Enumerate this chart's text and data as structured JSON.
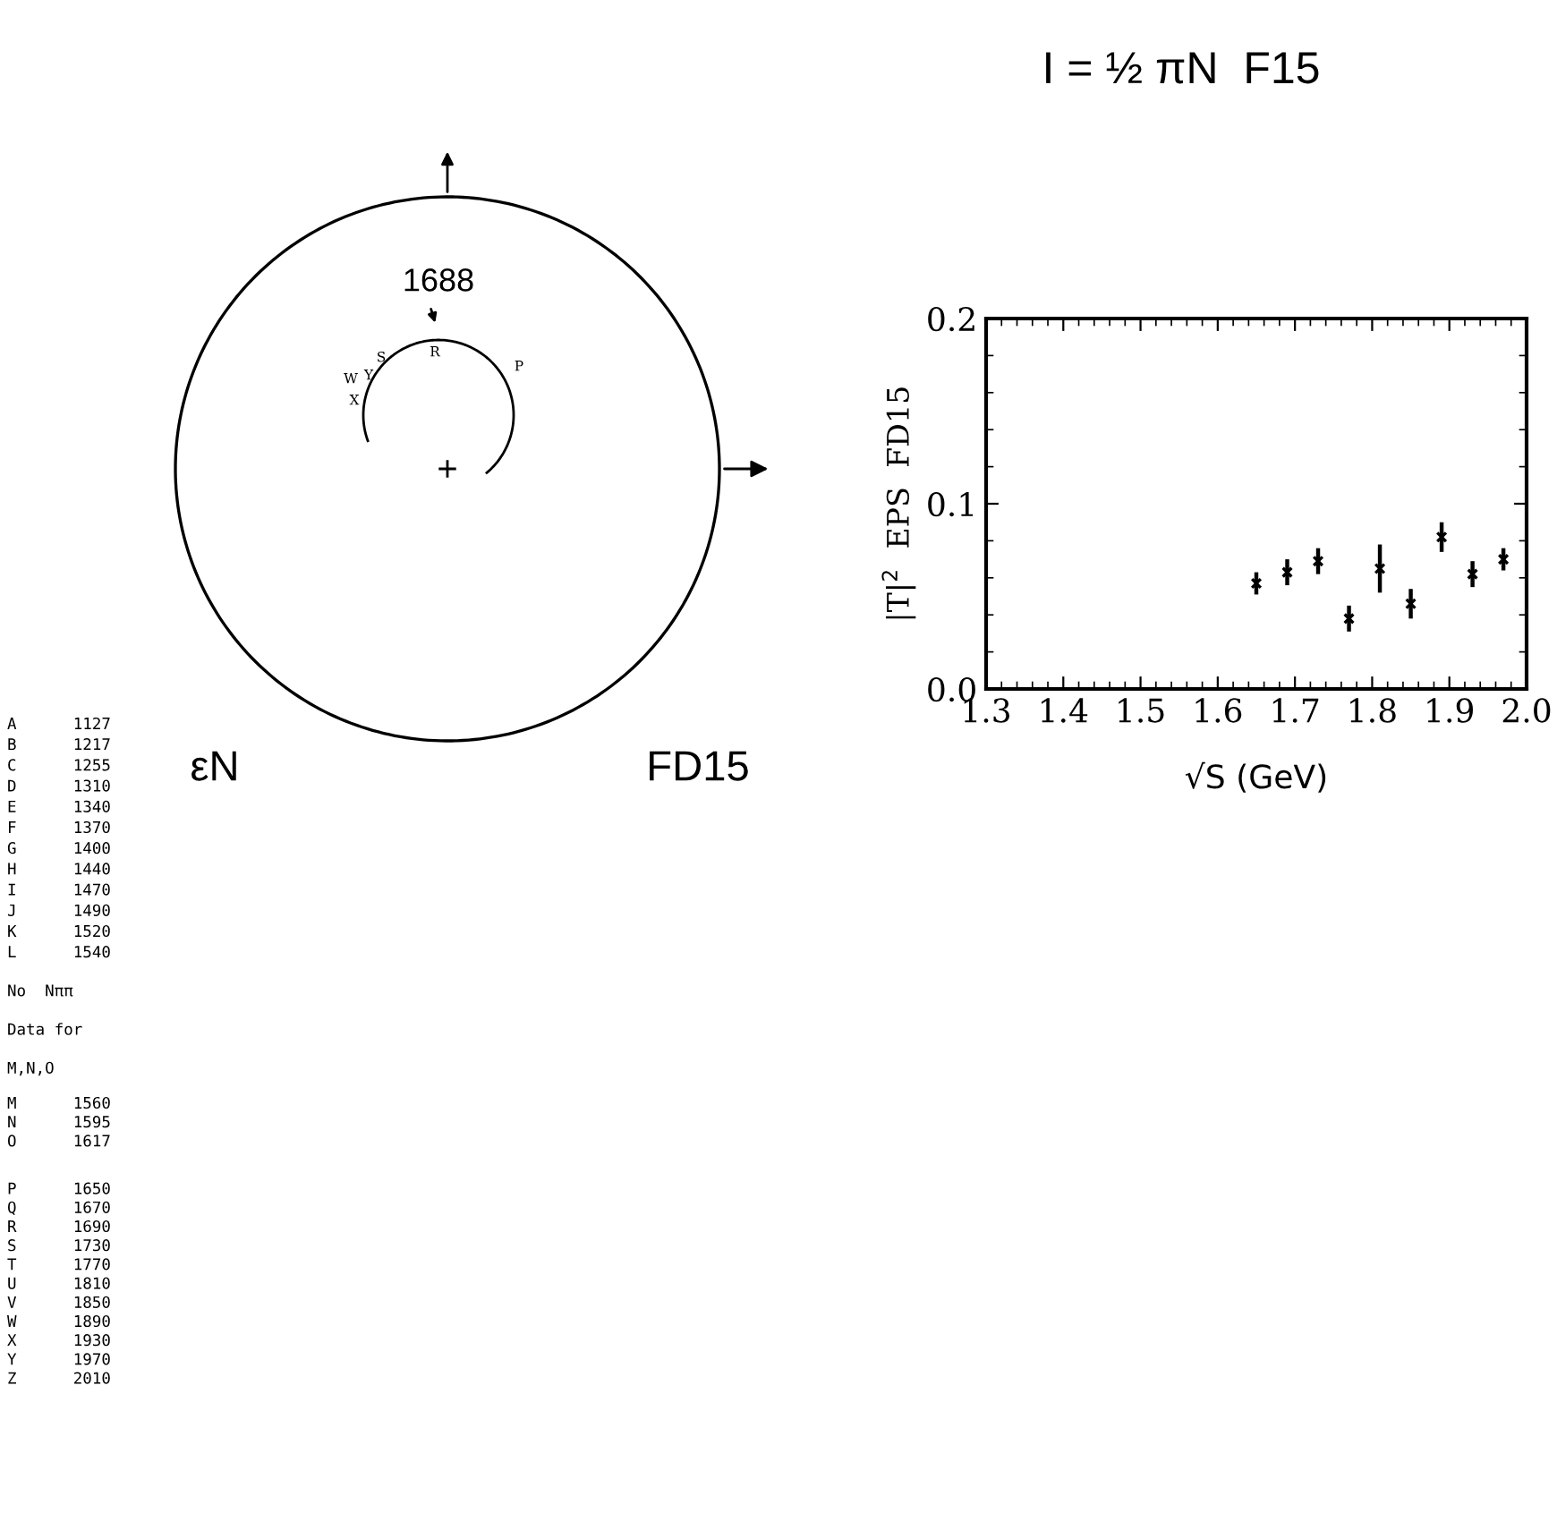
{
  "chart_data": [
    {
      "type": "other",
      "annotations": [
        "1688",
        "εN",
        "FD15",
        "P",
        "R",
        "S",
        "W",
        "Y",
        "X",
        "A      1127",
        "B      1217",
        "C      1255",
        "D      1310",
        "E      1340",
        "F      1370",
        "G      1400",
        "H      1440",
        "I      1470",
        "J      1490",
        "K      1520",
        "L      1540",
        "No  Nππ",
        "Data for",
        "M,N,O",
        "M      1560",
        "N      1595",
        "O      1617",
        "P      1650",
        "Q      1670",
        "R      1690",
        "S      1730",
        "T      1770",
        "U      1810",
        "V      1850",
        "W      1890",
        "X      1930",
        "Y      1970",
        "Z      2010"
      ]
    },
    {
      "type": "scatter",
      "title": "I = ½ πN  F15",
      "xlabel": "√S (GeV)",
      "ylabel": "|T|$^{2}$  EPS  FD15",
      "x": [
        1.65,
        1.69,
        1.73,
        1.77,
        1.81,
        1.85,
        1.89,
        1.93,
        1.97
      ],
      "values": [
        0.057,
        0.063,
        0.069,
        0.038,
        0.065,
        0.046,
        0.082,
        0.062,
        0.07
      ],
      "errors": [
        0.006,
        0.007,
        0.007,
        0.007,
        0.013,
        0.008,
        0.008,
        0.007,
        0.006
      ],
      "color": "#000000",
      "marker": "cross",
      "xlim": [
        1.3,
        2.0
      ],
      "ylim": [
        0.0,
        0.2
      ],
      "xticks": [
        {
          "value": 1.3,
          "label": "1.3"
        },
        {
          "value": 1.4,
          "label": "1.4"
        },
        {
          "value": 1.5,
          "label": "1.5"
        },
        {
          "value": 1.6,
          "label": "1.6"
        },
        {
          "value": 1.7,
          "label": "1.7"
        },
        {
          "value": 1.8,
          "label": "1.8"
        },
        {
          "value": 1.9,
          "label": "1.9"
        },
        {
          "value": 2.0,
          "label": "2.0"
        }
      ],
      "yticks": [
        {
          "value": 0.0,
          "label": "0.0"
        },
        {
          "value": 0.1,
          "label": "0.1"
        },
        {
          "value": 0.2,
          "label": "0.2"
        }
      ]
    }
  ]
}
